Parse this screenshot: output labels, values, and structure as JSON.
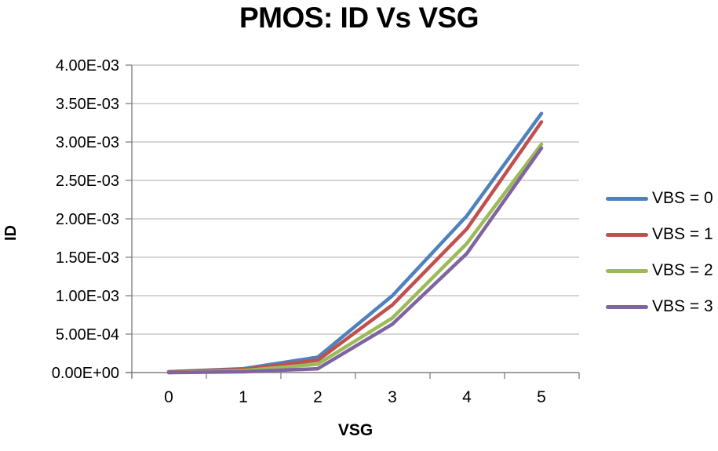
{
  "chart_data": {
    "type": "line",
    "title": "PMOS: ID Vs VSG",
    "xlabel": "VSG",
    "ylabel": "ID",
    "x": [
      0,
      1,
      2,
      3,
      4,
      5
    ],
    "xtick_labels": [
      "0",
      "1",
      "2",
      "3",
      "4",
      "5"
    ],
    "ytick_labels": [
      "0.00E+00",
      "5.00E-04",
      "1.00E-03",
      "1.50E-03",
      "2.00E-03",
      "2.50E-03",
      "3.00E-03",
      "3.50E-03",
      "4.00E-03"
    ],
    "ylim": [
      0,
      0.004
    ],
    "ytick_step": 0.0005,
    "grid": true,
    "legend_position": "right",
    "series": [
      {
        "name": "VBS = 0",
        "color": "#4F81BD",
        "values": [
          1e-05,
          5e-05,
          0.0002,
          0.001,
          0.00204,
          0.00337
        ]
      },
      {
        "name": "VBS = 1",
        "color": "#C0504D",
        "values": [
          1e-05,
          4e-05,
          0.00016,
          0.00088,
          0.00187,
          0.00326
        ]
      },
      {
        "name": "VBS = 2",
        "color": "#9BBB59",
        "values": [
          0.0,
          2.5e-05,
          0.00011,
          0.00071,
          0.00168,
          0.00297
        ]
      },
      {
        "name": "VBS = 3",
        "color": "#8064A2",
        "values": [
          0.0,
          1e-05,
          5e-05,
          0.00063,
          0.00155,
          0.00292
        ]
      }
    ],
    "axis_color": "#808080",
    "gridline_color": "#ABABAB",
    "text_color": "#000000"
  }
}
